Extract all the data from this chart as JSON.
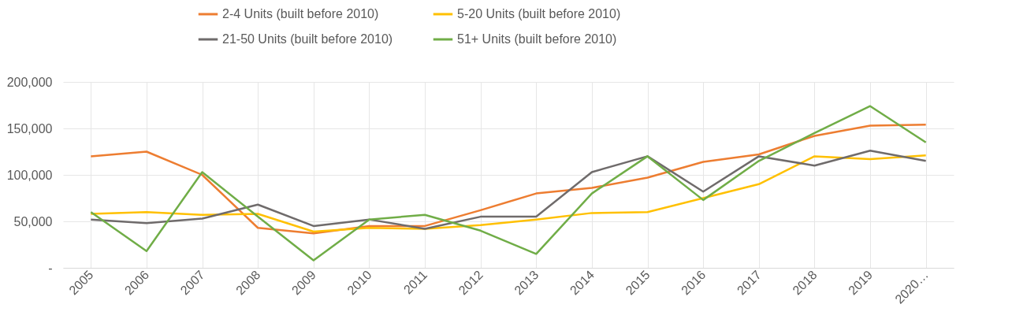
{
  "chart_data": {
    "type": "line",
    "categories": [
      "2005",
      "2006",
      "2007",
      "2008",
      "2009",
      "2010",
      "2011",
      "2012",
      "2013",
      "2014",
      "2015",
      "2016",
      "2017",
      "2018",
      "2019",
      "2020…"
    ],
    "series": [
      {
        "name": "2-4 Units (built before 2010)",
        "color": "#ed7d31",
        "values": [
          120000,
          125000,
          100000,
          43000,
          37000,
          45000,
          45000,
          62000,
          80000,
          86000,
          97000,
          114000,
          122000,
          142000,
          153000,
          154000
        ]
      },
      {
        "name": "5-20 Units  (built before 2010)",
        "color": "#ffc000",
        "values": [
          58000,
          60000,
          57000,
          58000,
          39000,
          43000,
          42000,
          46000,
          52000,
          59000,
          60000,
          75000,
          90000,
          120000,
          117000,
          121000
        ]
      },
      {
        "name": "21-50 Units  (built before 2010)",
        "color": "#6f6b6b",
        "values": [
          52000,
          48000,
          53000,
          68000,
          45000,
          52000,
          42000,
          55000,
          55000,
          103000,
          120000,
          82000,
          120000,
          110000,
          126000,
          115000
        ]
      },
      {
        "name": "51+ Units  (built before 2010)",
        "color": "#70ad47",
        "values": [
          60000,
          18000,
          103000,
          55000,
          8000,
          52000,
          57000,
          40000,
          15000,
          80000,
          120000,
          73000,
          115000,
          145000,
          174000,
          135000
        ]
      }
    ],
    "ylim": [
      0,
      200000
    ],
    "yticks": [
      {
        "value": 0,
        "label": "-"
      },
      {
        "value": 50000,
        "label": "50,000"
      },
      {
        "value": 100000,
        "label": "100,000"
      },
      {
        "value": 150000,
        "label": "150,000"
      },
      {
        "value": 200000,
        "label": "200,000"
      }
    ],
    "grid": true,
    "legend": "top",
    "marker": "none",
    "line_style": "solid"
  }
}
